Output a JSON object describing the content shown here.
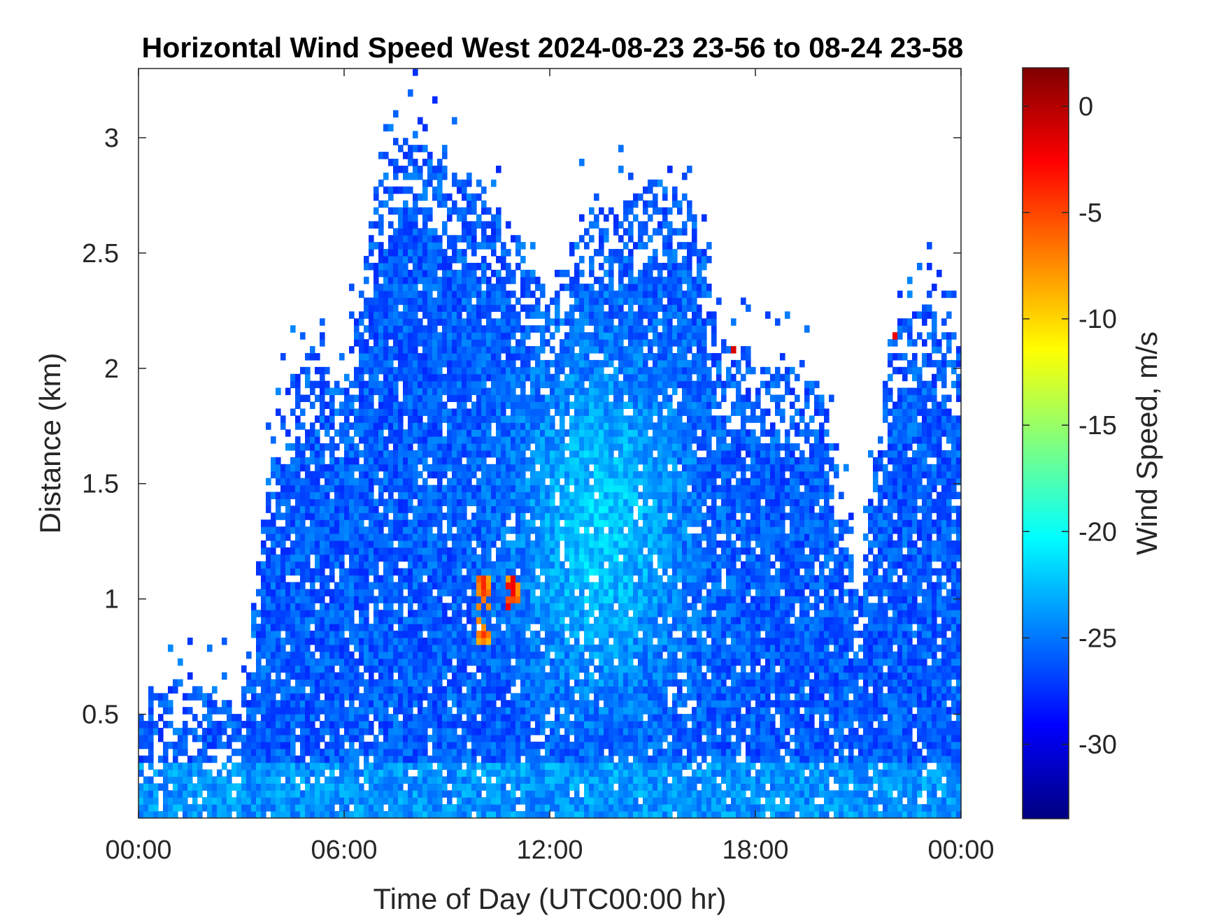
{
  "chart_data": {
    "type": "heatmap",
    "title": "Horizontal Wind Speed West 2024-08-23 23-56 to 08-24 23-58",
    "xlabel": "Time of Day (UTC00:00 hr)",
    "ylabel": "Distance (km)",
    "colorbar_label": "Wind Speed, m/s",
    "colormap": "jet",
    "x_tick_labels": [
      "00:00",
      "06:00",
      "12:00",
      "18:00",
      "00:00"
    ],
    "x_ticks_hours": [
      0,
      6,
      12,
      18,
      24
    ],
    "xlim_hours": [
      0,
      24
    ],
    "y_ticks": [
      0.5,
      1,
      1.5,
      2,
      2.5,
      3
    ],
    "y_tick_labels": [
      "0.5",
      "1",
      "1.5",
      "2",
      "2.5",
      "3"
    ],
    "ylim_km": [
      0.05,
      3.3
    ],
    "colorbar_ticks": [
      0,
      -5,
      -10,
      -15,
      -20,
      -25,
      -30
    ],
    "colorbar_range": [
      -33.5,
      1.8
    ],
    "typical_value": -24,
    "data_top_km_by_hour": [
      {
        "hour": 0,
        "top_km": 0.55
      },
      {
        "hour": 1,
        "top_km": 0.65
      },
      {
        "hour": 2,
        "top_km": 0.6
      },
      {
        "hour": 3,
        "top_km": 0.55
      },
      {
        "hour": 4,
        "top_km": 1.8
      },
      {
        "hour": 5,
        "top_km": 2.1
      },
      {
        "hour": 6,
        "top_km": 1.9
      },
      {
        "hour": 7,
        "top_km": 2.85
      },
      {
        "hour": 8,
        "top_km": 3.05
      },
      {
        "hour": 9,
        "top_km": 2.85
      },
      {
        "hour": 10,
        "top_km": 2.8
      },
      {
        "hour": 11,
        "top_km": 2.6
      },
      {
        "hour": 12,
        "top_km": 2.3
      },
      {
        "hour": 13,
        "top_km": 2.7
      },
      {
        "hour": 14,
        "top_km": 2.7
      },
      {
        "hour": 15,
        "top_km": 2.8
      },
      {
        "hour": 16,
        "top_km": 2.85
      },
      {
        "hour": 17,
        "top_km": 2.1
      },
      {
        "hour": 18,
        "top_km": 2.05
      },
      {
        "hour": 19,
        "top_km": 2.0
      },
      {
        "hour": 20,
        "top_km": 1.9
      },
      {
        "hour": 21,
        "top_km": 1.0
      },
      {
        "hour": 22,
        "top_km": 2.2
      },
      {
        "hour": 23,
        "top_km": 2.3
      },
      {
        "hour": 24,
        "top_km": 2.1
      }
    ],
    "warm_patches": [
      {
        "hour": 10.1,
        "km_range": [
          0.8,
          1.1
        ],
        "value": -3
      },
      {
        "hour": 10.9,
        "km_range": [
          0.95,
          1.1
        ],
        "value": -2
      },
      {
        "hour": 17.4,
        "km_range": [
          2.0,
          2.1
        ],
        "value": 1
      },
      {
        "hour": 22.1,
        "km_range": [
          2.1,
          2.2
        ],
        "value": 1
      }
    ]
  }
}
